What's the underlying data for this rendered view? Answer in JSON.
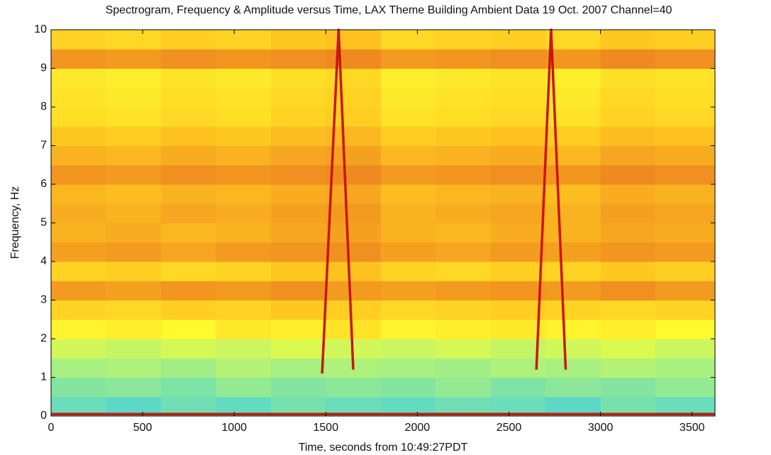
{
  "chart_data": {
    "type": "heatmap",
    "title": "Spectrogram, Frequency & Amplitude versus Time, LAX Theme Building Ambient Data 19 Oct. 2007  Channel=40",
    "xlabel": "Time, seconds from 10:49:27PDT",
    "ylabel": "Frequency, Hz",
    "xlim": [
      0,
      3625
    ],
    "ylim": [
      0,
      10
    ],
    "xticks": [
      0,
      500,
      1000,
      1500,
      2000,
      2500,
      3000,
      3500
    ],
    "yticks": [
      0,
      1,
      2,
      3,
      4,
      5,
      6,
      7,
      8,
      9,
      10
    ],
    "time_edges": [
      0,
      300,
      600,
      900,
      1200,
      1500,
      1800,
      2100,
      2400,
      2700,
      3000,
      3300,
      3625
    ],
    "frequency_edges": [
      0,
      0.5,
      1,
      1.5,
      2,
      2.5,
      3,
      3.5,
      4,
      4.5,
      5,
      5.5,
      6,
      6.5,
      7,
      7.5,
      8,
      8.5,
      9,
      9.5,
      10
    ],
    "clim": [
      0.3,
      1
    ],
    "colormap": [
      {
        "value": 0.3,
        "color": "#40d0e0"
      },
      {
        "value": 0.45,
        "color": "#a8f080"
      },
      {
        "value": 0.6,
        "color": "#ffff30"
      },
      {
        "value": 0.7,
        "color": "#ffc820"
      },
      {
        "value": 0.8,
        "color": "#f09020"
      },
      {
        "value": 1.0,
        "color": "#d01808"
      }
    ],
    "values": [
      [
        0.36,
        0.34,
        0.37,
        0.35,
        0.38,
        0.36,
        0.35,
        0.37,
        0.36,
        0.34,
        0.38,
        0.36
      ],
      [
        0.4,
        0.41,
        0.39,
        0.42,
        0.4,
        0.41,
        0.4,
        0.42,
        0.39,
        0.41,
        0.4,
        0.42
      ],
      [
        0.45,
        0.46,
        0.44,
        0.47,
        0.45,
        0.46,
        0.45,
        0.44,
        0.46,
        0.45,
        0.47,
        0.45
      ],
      [
        0.52,
        0.5,
        0.53,
        0.51,
        0.54,
        0.52,
        0.51,
        0.53,
        0.5,
        0.52,
        0.54,
        0.51
      ],
      [
        0.62,
        0.63,
        0.61,
        0.64,
        0.63,
        0.65,
        0.62,
        0.63,
        0.64,
        0.62,
        0.63,
        0.61
      ],
      [
        0.68,
        0.67,
        0.69,
        0.68,
        0.7,
        0.69,
        0.67,
        0.68,
        0.69,
        0.68,
        0.67,
        0.68
      ],
      [
        0.78,
        0.77,
        0.79,
        0.78,
        0.8,
        0.78,
        0.77,
        0.78,
        0.79,
        0.78,
        0.8,
        0.78
      ],
      [
        0.68,
        0.69,
        0.67,
        0.68,
        0.7,
        0.71,
        0.68,
        0.67,
        0.69,
        0.68,
        0.7,
        0.69
      ],
      [
        0.77,
        0.78,
        0.76,
        0.78,
        0.79,
        0.8,
        0.77,
        0.76,
        0.78,
        0.77,
        0.79,
        0.78
      ],
      [
        0.74,
        0.75,
        0.73,
        0.74,
        0.76,
        0.77,
        0.74,
        0.73,
        0.75,
        0.74,
        0.76,
        0.75
      ],
      [
        0.75,
        0.74,
        0.76,
        0.75,
        0.77,
        0.78,
        0.74,
        0.75,
        0.76,
        0.74,
        0.77,
        0.76
      ],
      [
        0.73,
        0.72,
        0.74,
        0.73,
        0.75,
        0.76,
        0.72,
        0.73,
        0.74,
        0.72,
        0.75,
        0.74
      ],
      [
        0.79,
        0.78,
        0.8,
        0.79,
        0.8,
        0.81,
        0.78,
        0.79,
        0.8,
        0.79,
        0.81,
        0.8
      ],
      [
        0.74,
        0.73,
        0.75,
        0.74,
        0.76,
        0.77,
        0.73,
        0.74,
        0.75,
        0.73,
        0.76,
        0.75
      ],
      [
        0.7,
        0.69,
        0.71,
        0.7,
        0.72,
        0.73,
        0.69,
        0.7,
        0.71,
        0.69,
        0.72,
        0.71
      ],
      [
        0.66,
        0.65,
        0.67,
        0.66,
        0.68,
        0.69,
        0.65,
        0.66,
        0.67,
        0.65,
        0.68,
        0.67
      ],
      [
        0.65,
        0.64,
        0.66,
        0.65,
        0.67,
        0.68,
        0.64,
        0.65,
        0.66,
        0.64,
        0.67,
        0.66
      ],
      [
        0.64,
        0.63,
        0.65,
        0.64,
        0.66,
        0.67,
        0.63,
        0.64,
        0.65,
        0.63,
        0.66,
        0.65
      ],
      [
        0.79,
        0.78,
        0.8,
        0.79,
        0.8,
        0.81,
        0.78,
        0.79,
        0.8,
        0.79,
        0.81,
        0.8
      ],
      [
        0.68,
        0.67,
        0.69,
        0.68,
        0.7,
        0.71,
        0.67,
        0.68,
        0.69,
        0.67,
        0.7,
        0.69
      ]
    ],
    "track_color": "#c81808",
    "tracks": [
      {
        "x": [
          1480,
          1570,
          1650
        ],
        "y": [
          1.1,
          10,
          1.2
        ]
      },
      {
        "x": [
          2650,
          2730,
          2810
        ],
        "y": [
          1.2,
          10,
          1.2
        ]
      },
      {
        "x": [
          0,
          3625
        ],
        "y": [
          0.05,
          0.05
        ]
      }
    ]
  }
}
